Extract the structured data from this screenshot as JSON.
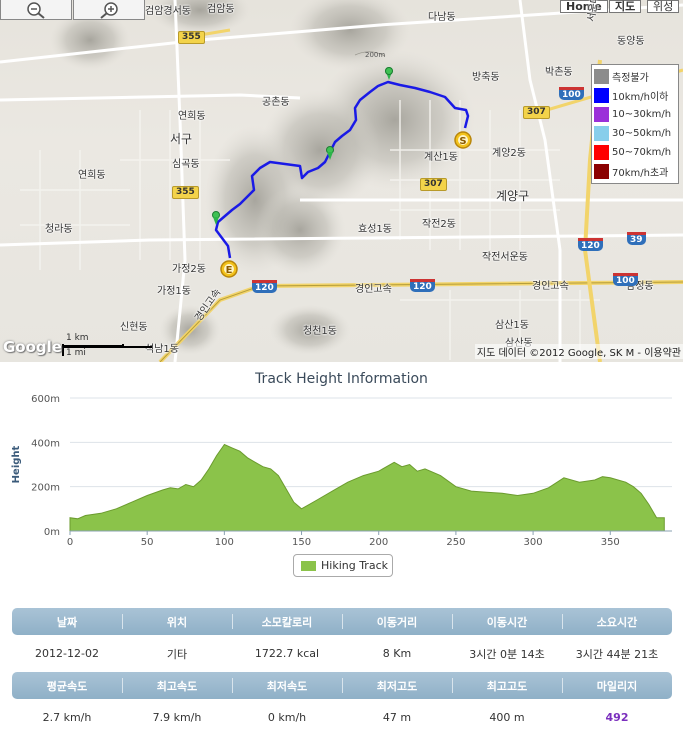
{
  "map": {
    "zoom_out_label": "−",
    "zoom_in_label": "+",
    "maptype_buttons": [
      "Home",
      "지도",
      "위성"
    ],
    "labels": [
      "검암경서동",
      "검암동",
      "다남동",
      "동양동",
      "방축동",
      "박촌동",
      "공촌동",
      "연희동",
      "서구",
      "심곡동",
      "연희동",
      "계산1동",
      "계양2동",
      "계양구",
      "청라동",
      "효성1동",
      "작전2동",
      "작전서운동",
      "가정2동",
      "가정1동",
      "신현동",
      "청천1동",
      "삼산1동",
      "삼산동",
      "석남1동",
      "삼정동",
      "서운대로",
      "경인고속",
      "경인고속",
      "경인고속"
    ],
    "route_shields": [
      "355",
      "307",
      "307",
      "355"
    ],
    "highway_shields": [
      "120",
      "120",
      "120",
      "100",
      "100",
      "39"
    ],
    "start_marker": "S",
    "end_marker": "E",
    "scale_km": "1 km",
    "scale_mi": "1 mi",
    "google_mark": "Google",
    "copyright": "지도 데이터 ©2012 Google, SK M - 이용약관",
    "contour_label": "200m"
  },
  "legend": {
    "items": [
      {
        "label": "측정불가",
        "color": "#8c8c8c"
      },
      {
        "label": "10km/h이하",
        "color": "#0000ff"
      },
      {
        "label": "10~30km/h",
        "color": "#9b30d9"
      },
      {
        "label": "30~50km/h",
        "color": "#87ceeb"
      },
      {
        "label": "50~70km/h",
        "color": "#ff0000"
      },
      {
        "label": "70km/h초과",
        "color": "#8b0000"
      }
    ]
  },
  "chart_data": {
    "type": "area",
    "title": "Track Height Information",
    "ylabel": "Height",
    "xlabel": "",
    "xlim": [
      0,
      390
    ],
    "ylim": [
      0,
      600
    ],
    "xticks": [
      0,
      50,
      100,
      150,
      200,
      250,
      300,
      350
    ],
    "yticks": [
      0,
      200,
      400,
      600
    ],
    "ytick_labels": [
      "0m",
      "200m",
      "400m",
      "600m"
    ],
    "grid": true,
    "legend_position": "bottom-center",
    "color": "#8bc34a",
    "series": [
      {
        "name": "Hiking Track",
        "x": [
          0,
          5,
          10,
          20,
          30,
          40,
          50,
          60,
          65,
          70,
          75,
          80,
          85,
          90,
          95,
          100,
          105,
          110,
          115,
          120,
          125,
          130,
          135,
          140,
          145,
          150,
          155,
          160,
          170,
          180,
          190,
          200,
          210,
          215,
          220,
          225,
          230,
          240,
          250,
          260,
          270,
          280,
          290,
          300,
          310,
          320,
          330,
          340,
          345,
          350,
          355,
          360,
          365,
          370,
          375,
          380,
          385
        ],
        "y": [
          60,
          55,
          70,
          80,
          100,
          130,
          160,
          185,
          195,
          190,
          210,
          200,
          230,
          280,
          340,
          390,
          375,
          360,
          330,
          310,
          290,
          280,
          250,
          190,
          130,
          100,
          120,
          140,
          180,
          220,
          250,
          270,
          310,
          290,
          300,
          270,
          280,
          250,
          200,
          180,
          175,
          170,
          160,
          170,
          195,
          240,
          220,
          230,
          245,
          240,
          230,
          220,
          200,
          170,
          120,
          60,
          60
        ]
      }
    ]
  },
  "stats": {
    "headers_row1": [
      "날짜",
      "위치",
      "소모칼로리",
      "이동거리",
      "이동시간",
      "소요시간"
    ],
    "values_row1": [
      "2012-12-02",
      "기타",
      "1722.7 kcal",
      "8 Km",
      "3시간 0분 14초",
      "3시간 44분 21초"
    ],
    "headers_row2": [
      "평균속도",
      "최고속도",
      "최저속도",
      "최저고도",
      "최고고도",
      "마일리지"
    ],
    "values_row2": [
      "2.7 km/h",
      "7.9 km/h",
      "0 km/h",
      "47 m",
      "400 m",
      "492"
    ]
  }
}
